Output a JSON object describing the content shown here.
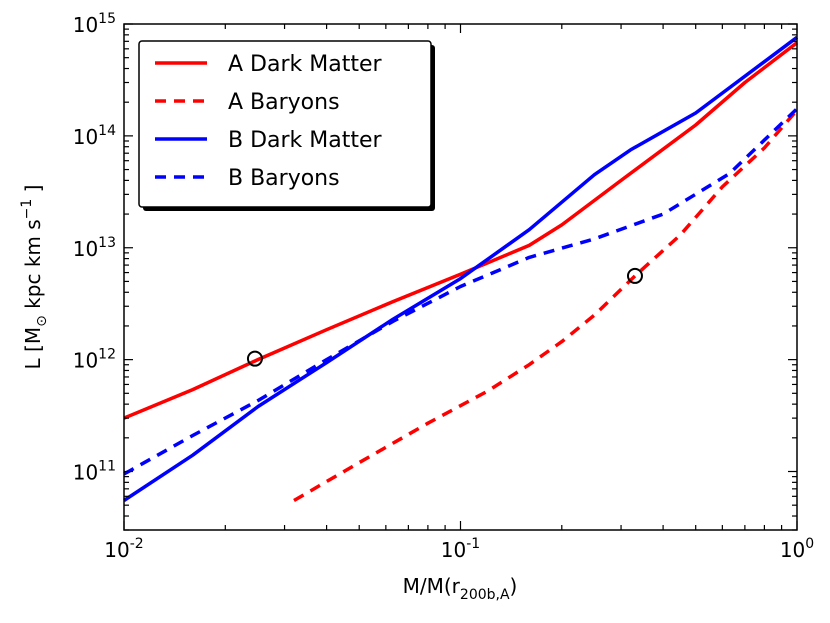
{
  "chart_data": {
    "type": "line",
    "xscale": "log",
    "yscale": "log",
    "xlim": [
      0.01,
      1
    ],
    "ylim": [
      30000000000.0,
      1000000000000000.0
    ],
    "x_ticks": [
      {
        "base": "10",
        "exp": "-2"
      },
      {
        "base": "10",
        "exp": "-1"
      },
      {
        "base": "10",
        "exp": "0"
      }
    ],
    "y_ticks": [
      {
        "base": "10",
        "exp": "11"
      },
      {
        "base": "10",
        "exp": "12"
      },
      {
        "base": "10",
        "exp": "13"
      },
      {
        "base": "10",
        "exp": "14"
      },
      {
        "base": "10",
        "exp": "15"
      }
    ],
    "xlabel": {
      "main": "M/M(r",
      "sub": "200b,A",
      "end": ")"
    },
    "ylabel": {
      "pre": "L [M",
      "sub": "⊙",
      "mid": " kpc km s",
      "sup": "−1",
      "end": " ]"
    },
    "legend_position": "top-left",
    "series": [
      {
        "name": "A Dark Matter",
        "color": "#ff0000",
        "style": "solid",
        "x": [
          0.01,
          0.016,
          0.025,
          0.04,
          0.063,
          0.1,
          0.16,
          0.2,
          0.3,
          0.5,
          0.7,
          1.0
        ],
        "y": [
          300000000000.0,
          540000000000.0,
          1000000000000.0,
          1850000000000.0,
          3300000000000.0,
          5800000000000.0,
          10500000000000.0,
          16000000000000.0,
          40000000000000.0,
          125000000000000.0,
          300000000000000.0,
          680000000000000.0
        ]
      },
      {
        "name": "A Baryons",
        "color": "#ff0000",
        "style": "dashed",
        "x": [
          0.032,
          0.05,
          0.08,
          0.12,
          0.16,
          0.2,
          0.25,
          0.33,
          0.45,
          0.6,
          0.8,
          1.0
        ],
        "y": [
          55000000000.0,
          120000000000.0,
          270000000000.0,
          520000000000.0,
          900000000000.0,
          1450000000000.0,
          2500000000000.0,
          5600000000000.0,
          13000000000000.0,
          35000000000000.0,
          78000000000000.0,
          170000000000000.0
        ]
      },
      {
        "name": "B Dark Matter",
        "color": "#0000ff",
        "style": "solid",
        "x": [
          0.01,
          0.016,
          0.025,
          0.04,
          0.063,
          0.1,
          0.16,
          0.25,
          0.32,
          0.5,
          0.8,
          1.0
        ],
        "y": [
          55000000000.0,
          140000000000.0,
          380000000000.0,
          940000000000.0,
          2300000000000.0,
          5300000000000.0,
          14500000000000.0,
          45000000000000.0,
          75000000000000.0,
          160000000000000.0,
          460000000000000.0,
          760000000000000.0
        ]
      },
      {
        "name": "B Baryons",
        "color": "#0000ff",
        "style": "dashed",
        "x": [
          0.01,
          0.016,
          0.025,
          0.04,
          0.063,
          0.1,
          0.16,
          0.25,
          0.4,
          0.63,
          1.0
        ],
        "y": [
          95000000000.0,
          210000000000.0,
          430000000000.0,
          1000000000000.0,
          2200000000000.0,
          4500000000000.0,
          8200000000000.0,
          12000000000000.0,
          20000000000000.0,
          46000000000000.0,
          175000000000000.0
        ]
      }
    ],
    "markers": [
      {
        "x": 0.0245,
        "y": 1020000000000.0,
        "shape": "open-circle"
      },
      {
        "x": 0.33,
        "y": 5600000000000.0,
        "shape": "open-circle"
      }
    ]
  }
}
